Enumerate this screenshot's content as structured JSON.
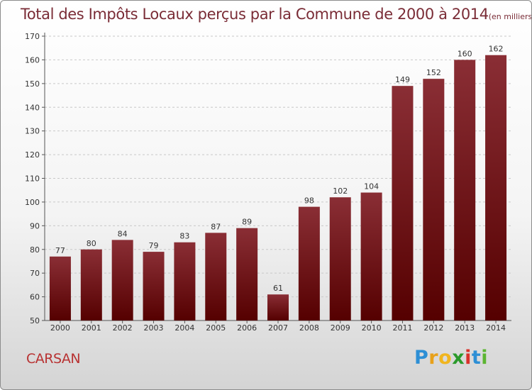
{
  "chart_data": {
    "type": "bar",
    "title": "Total des Impôts Locaux perçus par la Commune de 2000 à 2014",
    "unit": "(en milliers d'€)",
    "categories": [
      "2000",
      "2001",
      "2002",
      "2003",
      "2004",
      "2005",
      "2006",
      "2007",
      "2008",
      "2009",
      "2010",
      "2011",
      "2012",
      "2013",
      "2014"
    ],
    "values": [
      77,
      80,
      84,
      79,
      83,
      87,
      89,
      61,
      98,
      102,
      104,
      149,
      152,
      160,
      162
    ],
    "yticks": [
      50,
      60,
      70,
      80,
      90,
      100,
      110,
      120,
      130,
      140,
      150,
      160,
      170
    ],
    "ylim": [
      50,
      170
    ],
    "xlabel": "",
    "ylabel": "",
    "grid": "horizontal dashed",
    "bar_color": "#7a1e24"
  },
  "commune": "CARSAN",
  "brand": [
    "P",
    "r",
    "o",
    "x",
    "i",
    "t",
    "i"
  ]
}
